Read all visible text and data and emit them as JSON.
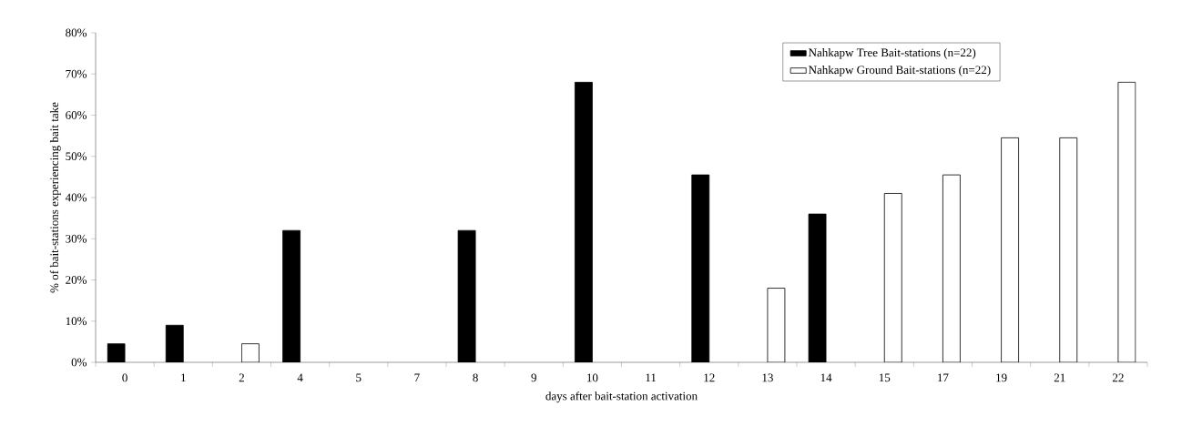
{
  "chart_data": {
    "type": "bar",
    "xlabel": "days after bait-station activation",
    "ylabel": "% of bait-stations experiencing bait take",
    "categories": [
      "0",
      "1",
      "2",
      "4",
      "5",
      "7",
      "8",
      "9",
      "10",
      "11",
      "12",
      "13",
      "14",
      "15",
      "17",
      "19",
      "21",
      "22"
    ],
    "series": [
      {
        "name": "Nahkapw Tree Bait-stations (n=22)",
        "color": "#000000",
        "values": [
          4.5,
          9,
          null,
          32,
          null,
          null,
          32,
          null,
          68,
          null,
          45.5,
          null,
          36,
          null,
          null,
          null,
          null,
          null
        ]
      },
      {
        "name": "Nahkapw Ground Bait-stations (n=22)",
        "color": "#ffffff",
        "values": [
          null,
          null,
          4.5,
          null,
          null,
          null,
          null,
          null,
          null,
          null,
          null,
          18,
          null,
          41,
          45.5,
          54.5,
          54.5,
          68
        ]
      }
    ],
    "ylim": [
      0,
      80
    ],
    "yticks": [
      {
        "value": 0,
        "label": "0%"
      },
      {
        "value": 10,
        "label": "10%"
      },
      {
        "value": 20,
        "label": "20%"
      },
      {
        "value": 30,
        "label": "30%"
      },
      {
        "value": 40,
        "label": "40%"
      },
      {
        "value": 50,
        "label": "50%"
      },
      {
        "value": 60,
        "label": "60%"
      },
      {
        "value": 70,
        "label": "70%"
      },
      {
        "value": 80,
        "label": "80%"
      }
    ],
    "legend": "top right",
    "grid": false
  }
}
